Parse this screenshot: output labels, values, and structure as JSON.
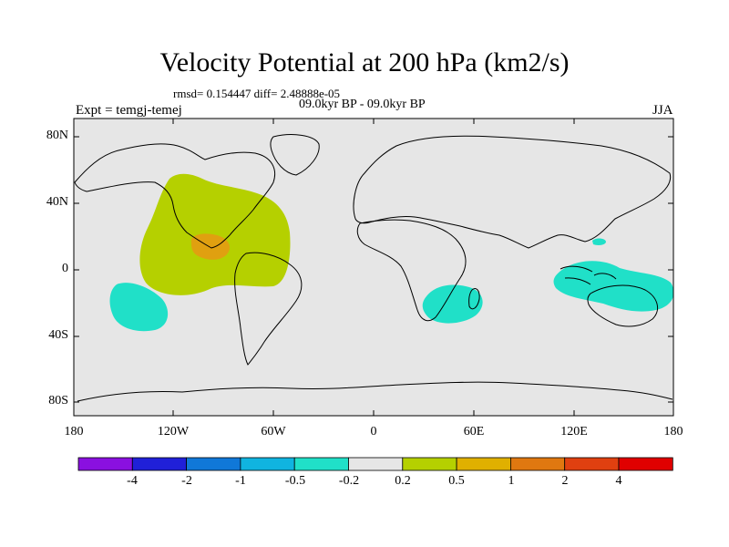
{
  "title": "Velocity Potential at 200 hPa (km2/s)",
  "stats": "rmsd= 0.154447 diff= 2.48888e-05",
  "period": "09.0kyr BP - 09.0kyr BP",
  "experiment": "Expt = temgj-temej",
  "season": "JJA",
  "colors": {
    "background": "#e6e6e6",
    "greenish": "#b5d000",
    "orange": "#e0a010",
    "cyan": "#20e0c8",
    "coast": "#000000"
  },
  "map": {
    "y_ticks": [
      "80N",
      "40N",
      "0",
      "40S",
      "80S"
    ],
    "x_ticks": [
      "180",
      "120W",
      "60W",
      "0",
      "60E",
      "120E",
      "180"
    ]
  },
  "colorbar": {
    "labels": [
      "-4",
      "-2",
      "-1",
      "-0.5",
      "-0.2",
      "0.2",
      "0.5",
      "1",
      "2",
      "4"
    ],
    "colors": [
      "#8a10e0",
      "#2020d8",
      "#1078d8",
      "#10b4e0",
      "#20e0c8",
      "#e6e6e6",
      "#b5d000",
      "#e0b000",
      "#e07810",
      "#e04010",
      "#e00000"
    ]
  }
}
